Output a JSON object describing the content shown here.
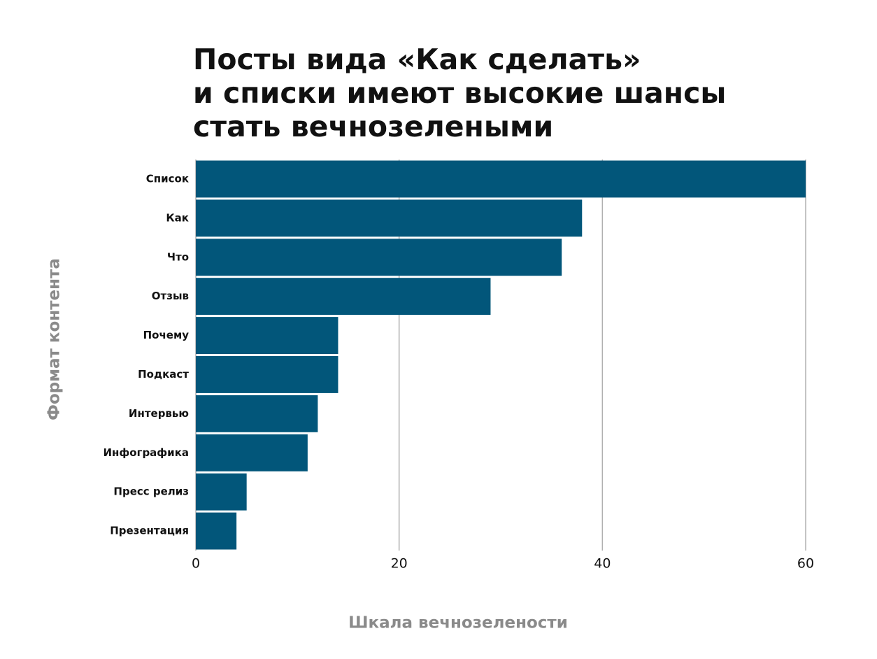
{
  "chart_data": {
    "type": "bar",
    "orientation": "horizontal",
    "title": [
      "Посты вида «Как сделать»",
      "и списки имеют высокие шансы",
      "стать вечнозелеными"
    ],
    "categories": [
      "Список",
      "Как",
      "Что",
      "Отзыв",
      "Почему",
      "Подкаст",
      "Интервью",
      "Инфографика",
      "Пресс релиз",
      "Презентация"
    ],
    "values": [
      60,
      38,
      36,
      29,
      14,
      14,
      12,
      11,
      5,
      4
    ],
    "color": "#02567a",
    "xlim": [
      0,
      60
    ],
    "xticks": [
      0,
      20,
      40,
      60
    ],
    "grid": true,
    "xlabel": "Шкала вечнозелености",
    "ylabel": "Формат контента"
  }
}
